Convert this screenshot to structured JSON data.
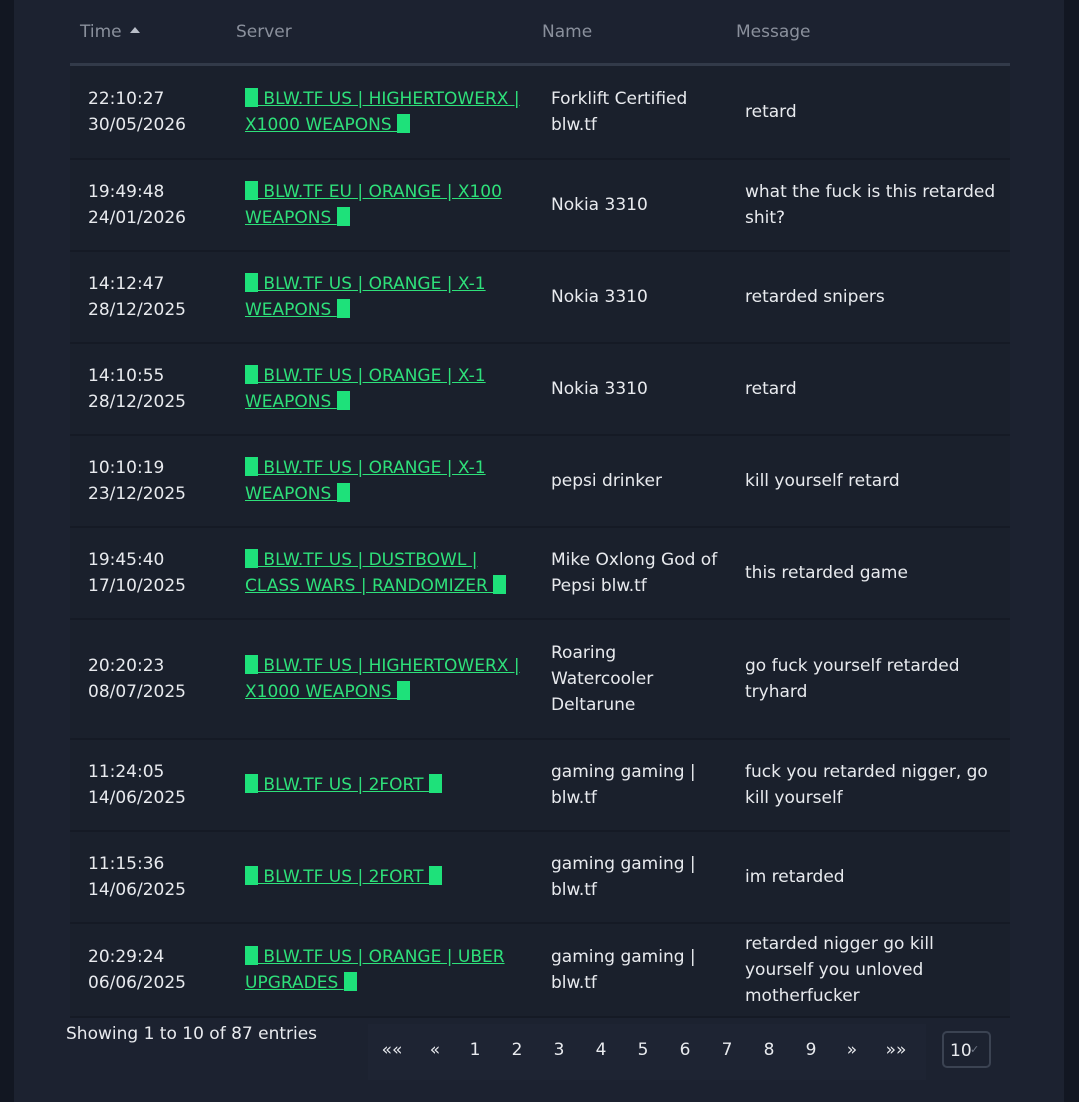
{
  "table": {
    "headers": {
      "time": "Time",
      "server": "Server",
      "name": "Name",
      "message": "Message"
    },
    "rows": [
      {
        "time": "22:10:27",
        "date": "30/05/2026",
        "server": " BLW.TF US | HIGHERTOWERX | X1000 WEAPONS ",
        "name": "Forklift Certified blw.tf",
        "message": "retard"
      },
      {
        "time": "19:49:48",
        "date": "24/01/2026",
        "server": " BLW.TF EU | ORANGE | X100 WEAPONS ",
        "name": "Nokia 3310",
        "message": "what the fuck is this retarded shit?"
      },
      {
        "time": "14:12:47",
        "date": "28/12/2025",
        "server": " BLW.TF US | ORANGE | X-1 WEAPONS ",
        "name": "Nokia 3310",
        "message": "retarded snipers"
      },
      {
        "time": "14:10:55",
        "date": "28/12/2025",
        "server": " BLW.TF US | ORANGE | X-1 WEAPONS ",
        "name": "Nokia 3310",
        "message": "retard"
      },
      {
        "time": "10:10:19",
        "date": "23/12/2025",
        "server": " BLW.TF US | ORANGE | X-1 WEAPONS ",
        "name": "pepsi drinker",
        "message": "kill yourself retard"
      },
      {
        "time": "19:45:40",
        "date": "17/10/2025",
        "server": " BLW.TF US | DUSTBOWL | CLASS WARS | RANDOMIZER ",
        "name": "Mike Oxlong God of Pepsi blw.tf",
        "message": "this retarded game"
      },
      {
        "time": "20:20:23",
        "date": "08/07/2025",
        "server": " BLW.TF US | HIGHERTOWERX | X1000 WEAPONS ",
        "name": "Roaring Watercooler Deltarune",
        "message": "go fuck yourself retarded tryhard"
      },
      {
        "time": "11:24:05",
        "date": "14/06/2025",
        "server": " BLW.TF US | 2FORT ",
        "name": "gaming gaming | blw.tf",
        "message": "fuck you retarded nigger, go kill yourself"
      },
      {
        "time": "11:15:36",
        "date": "14/06/2025",
        "server": " BLW.TF US | 2FORT ",
        "name": "gaming gaming | blw.tf",
        "message": "im retarded"
      },
      {
        "time": "20:29:24",
        "date": "06/06/2025",
        "server": " BLW.TF US | ORANGE | UBER UPGRADES ",
        "name": "gaming gaming | blw.tf",
        "message": "retarded nigger go kill yourself you unloved motherfucker"
      }
    ]
  },
  "footer": {
    "info": "Showing 1 to 10 of 87 entries",
    "pager": [
      "««",
      "«",
      "1",
      "2",
      "3",
      "4",
      "5",
      "6",
      "7",
      "8",
      "9",
      "»",
      "»»"
    ],
    "page_size": "10"
  },
  "colors": {
    "link": "#2ee07a",
    "block": "#1ee17a",
    "panel": "#1c2230"
  }
}
